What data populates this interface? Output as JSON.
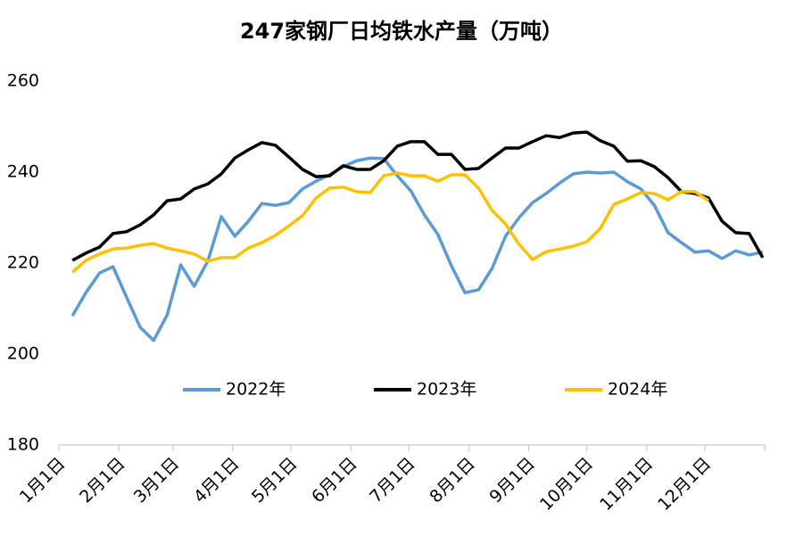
{
  "chart_data": {
    "type": "line",
    "title": "247家钢厂日均铁水产量（万吨）",
    "x": [
      7,
      14,
      21,
      28,
      35,
      42,
      49,
      56,
      63,
      70,
      77,
      84,
      91,
      98,
      105,
      112,
      119,
      126,
      133,
      140,
      147,
      154,
      161,
      168,
      175,
      182,
      189,
      196,
      203,
      210,
      217,
      224,
      231,
      238,
      245,
      252,
      259,
      266,
      273,
      280,
      287,
      294,
      301,
      308,
      315,
      322,
      329,
      336,
      343,
      350,
      357,
      364
    ],
    "series": [
      {
        "name": "2022年",
        "color": "#5b9bd5",
        "values": [
          208.4,
          213.5,
          217.8,
          219.2,
          212.5,
          205.9,
          203,
          208.6,
          219.6,
          214.9,
          220.4,
          230.2,
          225.9,
          229.2,
          233.1,
          232.7,
          233.3,
          236.3,
          238,
          239.4,
          241.2,
          242.5,
          243.1,
          243,
          239.2,
          235.9,
          230.6,
          226.3,
          219.4,
          213.5,
          214.1,
          218.8,
          225.9,
          230,
          233.3,
          235.3,
          237.6,
          239.6,
          240,
          239.8,
          240,
          237.9,
          236.3,
          232.7,
          226.7,
          224.5,
          222.4,
          222.7,
          221,
          222.7,
          221.8,
          222.4
        ]
      },
      {
        "name": "2023年",
        "color": "#000000",
        "values": [
          220.6,
          222.2,
          223.5,
          226.5,
          226.9,
          228.4,
          230.6,
          233.7,
          234.1,
          236.3,
          237.4,
          239.6,
          243.1,
          244.9,
          246.5,
          245.9,
          243.3,
          240.6,
          239,
          239.2,
          241.4,
          240.6,
          240.6,
          242.5,
          245.7,
          246.7,
          246.7,
          243.9,
          243.9,
          240.6,
          240.8,
          243.1,
          245.3,
          245.3,
          246.7,
          248,
          247.6,
          248.6,
          248.8,
          246.9,
          245.7,
          242.4,
          242.5,
          241.2,
          238.8,
          235.7,
          235.3,
          234.3,
          229.2,
          226.7,
          226.5,
          221.2
        ]
      },
      {
        "name": "2024年",
        "color": "#ffc000",
        "values": [
          218,
          220.6,
          222,
          223.1,
          223.3,
          223.9,
          224.3,
          223.3,
          222.7,
          222,
          220.4,
          221.2,
          221.2,
          223.3,
          224.5,
          226.1,
          228.2,
          230.4,
          234.3,
          236.5,
          236.7,
          235.7,
          235.5,
          239.2,
          239.8,
          239.2,
          239.2,
          238,
          239.4,
          239.4,
          236.5,
          231.6,
          228.6,
          224.1,
          220.8,
          222.5,
          223.1,
          223.7,
          224.7,
          227.6,
          232.9,
          234.1,
          235.5,
          235.3,
          233.9,
          235.7,
          235.7,
          233.7,
          null,
          null,
          null,
          null
        ]
      }
    ],
    "xlim": [
      0,
      365
    ],
    "xticks": [
      {
        "value": 0,
        "label": "1月1日"
      },
      {
        "value": 31,
        "label": "2月1日"
      },
      {
        "value": 59,
        "label": "3月1日"
      },
      {
        "value": 90,
        "label": "4月1日"
      },
      {
        "value": 120,
        "label": "5月1日"
      },
      {
        "value": 151,
        "label": "6月1日"
      },
      {
        "value": 181,
        "label": "7月1日"
      },
      {
        "value": 212,
        "label": "8月1日"
      },
      {
        "value": 243,
        "label": "9月1日"
      },
      {
        "value": 273,
        "label": "10月1日"
      },
      {
        "value": 304,
        "label": "11月1日"
      },
      {
        "value": 334,
        "label": "12月1日"
      },
      {
        "value": 365,
        "label": ""
      }
    ],
    "ylim": [
      180,
      260
    ],
    "yticks": [
      180,
      200,
      220,
      240,
      260
    ],
    "grid": false,
    "legend": "inside-bottom"
  }
}
